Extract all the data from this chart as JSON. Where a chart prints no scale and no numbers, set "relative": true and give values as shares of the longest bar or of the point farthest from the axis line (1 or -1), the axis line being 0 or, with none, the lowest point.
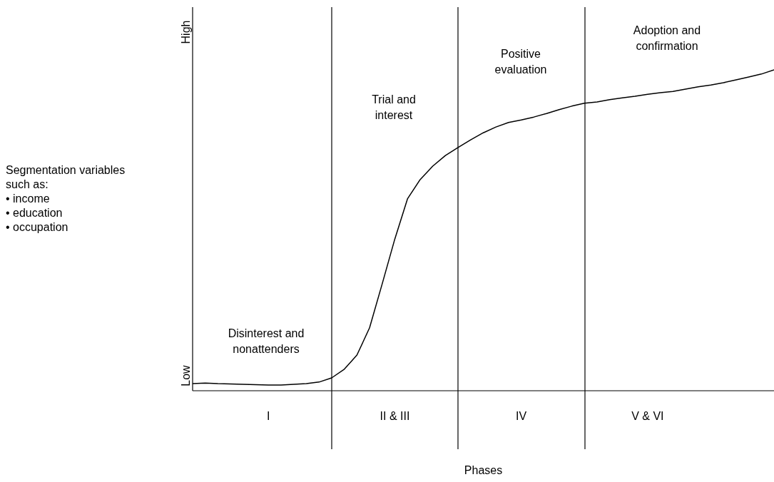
{
  "chart_data": {
    "type": "line",
    "xlabel": "Phases",
    "relative": true,
    "categories": [
      null,
      null,
      null,
      null,
      null,
      null,
      "I",
      null,
      null,
      null,
      null,
      null,
      null,
      null,
      null,
      null,
      "II & III",
      null,
      null,
      null,
      null,
      null,
      null,
      null,
      null,
      null,
      "IV",
      null,
      null,
      null,
      null,
      null,
      null,
      null,
      null,
      null,
      "V & VI",
      null,
      null,
      null,
      null,
      null,
      null,
      null,
      null,
      null,
      null
    ],
    "series": [
      {
        "color": "#000000",
        "values": [
          0.022,
          0.024,
          0.022,
          0.021,
          0.02,
          0.019,
          0.018,
          0.018,
          0.02,
          0.022,
          0.027,
          0.04,
          0.067,
          0.111,
          0.196,
          0.333,
          0.473,
          0.598,
          0.658,
          0.7,
          0.733,
          0.758,
          0.782,
          0.804,
          0.822,
          0.836,
          0.844,
          0.853,
          0.864,
          0.876,
          0.887,
          0.896,
          0.9,
          0.907,
          0.913,
          0.918,
          0.924,
          0.929,
          0.933,
          0.94,
          0.947,
          0.953,
          0.96,
          0.969,
          0.978,
          0.987,
          1
        ]
      }
    ],
    "annotations": [
      "Disinterest and\nnonattenders",
      "Trial and\ninterest",
      "Positive\nevaluation",
      "Adoption and\nconfirmation",
      "Segmentation variables\nsuch as:\n• income\n• education\n• occupation",
      "Low",
      "High"
    ],
    "grid": "x",
    "marker": "none",
    "line_style": "solid"
  }
}
